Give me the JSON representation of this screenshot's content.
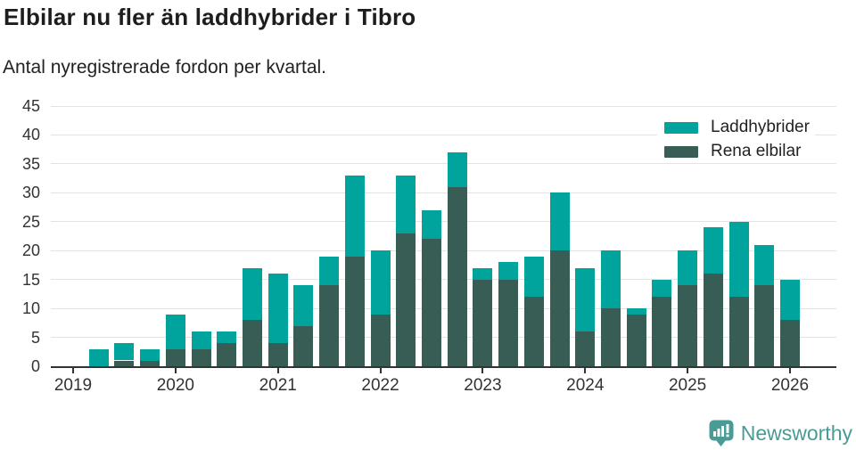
{
  "header": {
    "title": "Elbilar nu fler än laddhybrider i Tibro",
    "subtitle": "Antal nyregistrerade fordon per kvartal."
  },
  "chart_data": {
    "type": "bar",
    "stacked": true,
    "title": "Elbilar nu fler än laddhybrider i Tibro",
    "subtitle": "Antal nyregistrerade fordon per kvartal.",
    "xlabel": "",
    "ylabel": "",
    "ylim": [
      0,
      45
    ],
    "ytick_step": 5,
    "grid": true,
    "legend_position": "top-right",
    "quarters": [
      "2019 Q1",
      "2019 Q2",
      "2019 Q3",
      "2019 Q4",
      "2020 Q1",
      "2020 Q2",
      "2020 Q3",
      "2020 Q4",
      "2021 Q1",
      "2021 Q2",
      "2021 Q3",
      "2021 Q4",
      "2022 Q1",
      "2022 Q2",
      "2022 Q3",
      "2022 Q4",
      "2023 Q1",
      "2023 Q2",
      "2023 Q3",
      "2023 Q4",
      "2024 Q1",
      "2024 Q2",
      "2024 Q3",
      "2024 Q4",
      "2025 Q1",
      "2025 Q2",
      "2025 Q3",
      "2025 Q4",
      "2026 Q1"
    ],
    "year_labels": [
      "2019",
      "2020",
      "2021",
      "2022",
      "2023",
      "2024",
      "2025",
      "2026"
    ],
    "series": [
      {
        "name": "Laddhybrider",
        "color": "#00a49d",
        "values": [
          0,
          3,
          3,
          2,
          6,
          3,
          2,
          9,
          12,
          7,
          5,
          14,
          11,
          10,
          5,
          6,
          2,
          3,
          7,
          10,
          11,
          10,
          1,
          3,
          6,
          8,
          13,
          7,
          7
        ]
      },
      {
        "name": "Rena elbilar",
        "color": "#375d54",
        "values": [
          0,
          0,
          1,
          1,
          3,
          3,
          4,
          8,
          4,
          7,
          14,
          19,
          9,
          23,
          22,
          31,
          15,
          15,
          12,
          20,
          6,
          10,
          9,
          12,
          14,
          16,
          12,
          14,
          8
        ]
      }
    ],
    "totals": [
      0,
      3,
      4,
      3,
      9,
      6,
      6,
      17,
      16,
      14,
      19,
      33,
      20,
      33,
      27,
      37,
      17,
      18,
      19,
      30,
      17,
      20,
      10,
      15,
      20,
      24,
      25,
      21,
      15
    ],
    "axis_color": "#333333",
    "gridline_color": "#e3e3e3"
  },
  "footer": {
    "brand": "Newsworthy",
    "brand_color": "#4a9b95"
  }
}
